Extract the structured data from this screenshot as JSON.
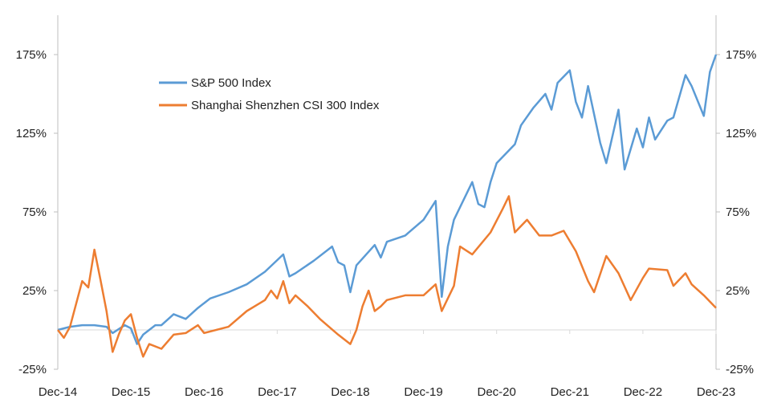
{
  "chart_data": {
    "type": "line",
    "title": "",
    "xlabel": "",
    "ylabel": "",
    "ylim": [
      -25,
      200
    ],
    "y_ticks": [
      "175%",
      "125%",
      "75%",
      "25%",
      "-25%"
    ],
    "y_tick_values": [
      175,
      125,
      75,
      25,
      -25
    ],
    "x_ticks": [
      "Dec-14",
      "Dec-15",
      "Dec-16",
      "Dec-17",
      "Dec-18",
      "Dec-19",
      "Dec-20",
      "Dec-21",
      "Dec-22",
      "Dec-23"
    ],
    "x_tick_dates": [
      "2014-12",
      "2015-12",
      "2016-12",
      "2017-12",
      "2018-12",
      "2019-12",
      "2020-12",
      "2021-12",
      "2022-12",
      "2023-12"
    ],
    "xlim": [
      "2014-12",
      "2023-12"
    ],
    "secondary_y_axis": true,
    "grid": false,
    "legend_position": "top-left",
    "series": [
      {
        "name": "S&P 500 Index",
        "color": "#5B9BD5",
        "points": [
          [
            "2014-12",
            0
          ],
          [
            "2015-02",
            2
          ],
          [
            "2015-04",
            3
          ],
          [
            "2015-06",
            3
          ],
          [
            "2015-08",
            2
          ],
          [
            "2015-09",
            -2
          ],
          [
            "2015-11",
            3
          ],
          [
            "2015-12",
            1
          ],
          [
            "2016-01",
            -9
          ],
          [
            "2016-02",
            -3
          ],
          [
            "2016-04",
            3
          ],
          [
            "2016-05",
            3
          ],
          [
            "2016-07",
            10
          ],
          [
            "2016-09",
            7
          ],
          [
            "2016-11",
            14
          ],
          [
            "2017-01",
            20
          ],
          [
            "2017-04",
            24
          ],
          [
            "2017-07",
            29
          ],
          [
            "2017-10",
            37
          ],
          [
            "2018-01",
            48
          ],
          [
            "2018-02",
            34
          ],
          [
            "2018-03",
            36
          ],
          [
            "2018-06",
            44
          ],
          [
            "2018-09",
            53
          ],
          [
            "2018-10",
            43
          ],
          [
            "2018-11",
            41
          ],
          [
            "2018-12",
            24
          ],
          [
            "2019-01",
            41
          ],
          [
            "2019-04",
            54
          ],
          [
            "2019-05",
            46
          ],
          [
            "2019-06",
            56
          ],
          [
            "2019-09",
            60
          ],
          [
            "2019-12",
            70
          ],
          [
            "2020-02",
            82
          ],
          [
            "2020-03",
            21
          ],
          [
            "2020-04",
            53
          ],
          [
            "2020-05",
            70
          ],
          [
            "2020-08",
            94
          ],
          [
            "2020-09",
            80
          ],
          [
            "2020-10",
            78
          ],
          [
            "2020-11",
            94
          ],
          [
            "2020-12",
            106
          ],
          [
            "2021-03",
            118
          ],
          [
            "2021-04",
            130
          ],
          [
            "2021-06",
            141
          ],
          [
            "2021-08",
            150
          ],
          [
            "2021-09",
            140
          ],
          [
            "2021-10",
            157
          ],
          [
            "2021-12",
            165
          ],
          [
            "2022-01",
            145
          ],
          [
            "2022-02",
            135
          ],
          [
            "2022-03",
            155
          ],
          [
            "2022-05",
            119
          ],
          [
            "2022-06",
            106
          ],
          [
            "2022-08",
            140
          ],
          [
            "2022-09",
            102
          ],
          [
            "2022-11",
            128
          ],
          [
            "2022-12",
            116
          ],
          [
            "2023-01",
            135
          ],
          [
            "2023-02",
            121
          ],
          [
            "2023-04",
            133
          ],
          [
            "2023-05",
            135
          ],
          [
            "2023-07",
            162
          ],
          [
            "2023-08",
            155
          ],
          [
            "2023-10",
            136
          ],
          [
            "2023-11",
            164
          ],
          [
            "2023-12",
            175
          ]
        ]
      },
      {
        "name": "Shanghai Shenzhen CSI 300 Index",
        "color": "#ED7D31",
        "points": [
          [
            "2014-12",
            0
          ],
          [
            "2015-01",
            -5
          ],
          [
            "2015-02",
            2
          ],
          [
            "2015-04",
            31
          ],
          [
            "2015-05",
            27
          ],
          [
            "2015-06",
            51
          ],
          [
            "2015-07",
            32
          ],
          [
            "2015-08",
            12
          ],
          [
            "2015-09",
            -14
          ],
          [
            "2015-10",
            -3
          ],
          [
            "2015-11",
            6
          ],
          [
            "2015-12",
            10
          ],
          [
            "2016-01",
            -5
          ],
          [
            "2016-02",
            -17
          ],
          [
            "2016-03",
            -9
          ],
          [
            "2016-05",
            -12
          ],
          [
            "2016-07",
            -3
          ],
          [
            "2016-09",
            -2
          ],
          [
            "2016-11",
            3
          ],
          [
            "2016-12",
            -2
          ],
          [
            "2017-04",
            2
          ],
          [
            "2017-07",
            12
          ],
          [
            "2017-10",
            19
          ],
          [
            "2017-11",
            25
          ],
          [
            "2017-12",
            20
          ],
          [
            "2018-01",
            31
          ],
          [
            "2018-02",
            17
          ],
          [
            "2018-03",
            22
          ],
          [
            "2018-05",
            15
          ],
          [
            "2018-07",
            7
          ],
          [
            "2018-10",
            -3
          ],
          [
            "2018-12",
            -9
          ],
          [
            "2019-01",
            0
          ],
          [
            "2019-02",
            15
          ],
          [
            "2019-03",
            25
          ],
          [
            "2019-04",
            12
          ],
          [
            "2019-05",
            15
          ],
          [
            "2019-06",
            19
          ],
          [
            "2019-09",
            22
          ],
          [
            "2019-12",
            22
          ],
          [
            "2020-02",
            29
          ],
          [
            "2020-03",
            12
          ],
          [
            "2020-05",
            28
          ],
          [
            "2020-06",
            53
          ],
          [
            "2020-08",
            48
          ],
          [
            "2020-11",
            62
          ],
          [
            "2021-01",
            77
          ],
          [
            "2021-02",
            85
          ],
          [
            "2021-03",
            62
          ],
          [
            "2021-05",
            70
          ],
          [
            "2021-07",
            60
          ],
          [
            "2021-09",
            60
          ],
          [
            "2021-11",
            63
          ],
          [
            "2022-01",
            50
          ],
          [
            "2022-03",
            31
          ],
          [
            "2022-04",
            24
          ],
          [
            "2022-06",
            47
          ],
          [
            "2022-08",
            36
          ],
          [
            "2022-10",
            19
          ],
          [
            "2022-12",
            33
          ],
          [
            "2023-01",
            39
          ],
          [
            "2023-04",
            38
          ],
          [
            "2023-05",
            28
          ],
          [
            "2023-07",
            36
          ],
          [
            "2023-08",
            29
          ],
          [
            "2023-10",
            22
          ],
          [
            "2023-12",
            14
          ]
        ]
      }
    ]
  }
}
